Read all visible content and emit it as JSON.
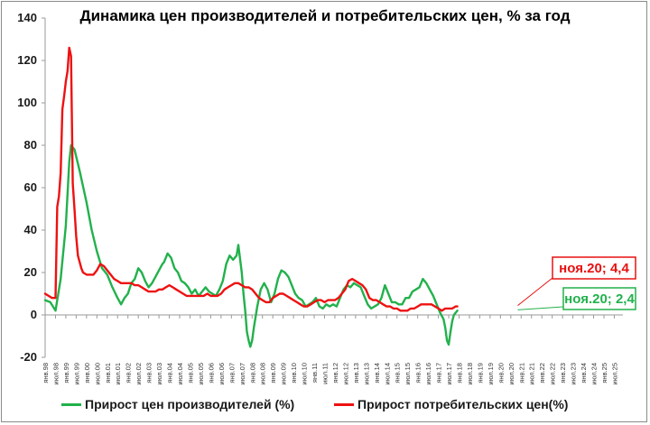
{
  "chart_data": {
    "type": "line",
    "title": "Динамика цен производителей и потребительских цен, % за год",
    "xlabel": "",
    "ylabel": "",
    "ylim": [
      -20,
      140
    ],
    "y_ticks": [
      140,
      120,
      100,
      80,
      60,
      40,
      20,
      0,
      -20
    ],
    "grid": false,
    "legend_position": "bottom",
    "x_tick_labels": [
      "янв.98",
      "июл.98",
      "янв.99",
      "июл.99",
      "янв.00",
      "июл.00",
      "янв.01",
      "июл.01",
      "янв.02",
      "июл.02",
      "янв.03",
      "июл.03",
      "янв.04",
      "июл.04",
      "янв.05",
      "июл.05",
      "янв.06",
      "июл.06",
      "янв.07",
      "июл.07",
      "янв.08",
      "июл.08",
      "янв.09",
      "июл.09",
      "янв.10",
      "июл.10",
      "янв.11",
      "июл.11",
      "янв.12",
      "июл.12",
      "янв.13",
      "июл.13",
      "янв.14",
      "июл.14",
      "янв.15",
      "июл.15",
      "янв.16",
      "июл.16",
      "янв.17",
      "июл.17",
      "янв.18",
      "июл.18",
      "янв.19",
      "июл.19",
      "янв.20",
      "июл.20",
      "янв.21",
      "июл.21",
      "янв.22",
      "июл.22",
      "янв.23",
      "июл.23",
      "янв.24",
      "июл.24",
      "янв.25",
      "июл.25"
    ],
    "series": [
      {
        "name": "Прирост цен производителей (%)",
        "color": "#22b14c",
        "points": [
          [
            0,
            7
          ],
          [
            3,
            6
          ],
          [
            6,
            2
          ],
          [
            9,
            17
          ],
          [
            12,
            42
          ],
          [
            14,
            72
          ],
          [
            15,
            80
          ],
          [
            17,
            78
          ],
          [
            20,
            68
          ],
          [
            24,
            53
          ],
          [
            27,
            40
          ],
          [
            30,
            30
          ],
          [
            33,
            22
          ],
          [
            36,
            19
          ],
          [
            39,
            13
          ],
          [
            42,
            8
          ],
          [
            44,
            5
          ],
          [
            46,
            8
          ],
          [
            48,
            10
          ],
          [
            50,
            15
          ],
          [
            52,
            17
          ],
          [
            54,
            22
          ],
          [
            56,
            20
          ],
          [
            58,
            16
          ],
          [
            60,
            13
          ],
          [
            62,
            15
          ],
          [
            64,
            18
          ],
          [
            66,
            21
          ],
          [
            68,
            24
          ],
          [
            69,
            25
          ],
          [
            71,
            29
          ],
          [
            73,
            27
          ],
          [
            75,
            22
          ],
          [
            77,
            20
          ],
          [
            79,
            16
          ],
          [
            81,
            15
          ],
          [
            83,
            13
          ],
          [
            85,
            10
          ],
          [
            87,
            12
          ],
          [
            89,
            9
          ],
          [
            91,
            11
          ],
          [
            93,
            13
          ],
          [
            95,
            11
          ],
          [
            97,
            10
          ],
          [
            99,
            9
          ],
          [
            101,
            12
          ],
          [
            103,
            16
          ],
          [
            105,
            24
          ],
          [
            107,
            28
          ],
          [
            109,
            26
          ],
          [
            111,
            28
          ],
          [
            112,
            33
          ],
          [
            114,
            20
          ],
          [
            115,
            10
          ],
          [
            116,
            2
          ],
          [
            117,
            -8
          ],
          [
            118,
            -12
          ],
          [
            119,
            -15
          ],
          [
            120,
            -12
          ],
          [
            121,
            -6
          ],
          [
            123,
            4
          ],
          [
            125,
            12
          ],
          [
            127,
            15
          ],
          [
            129,
            12
          ],
          [
            131,
            6
          ],
          [
            133,
            10
          ],
          [
            135,
            17
          ],
          [
            137,
            21
          ],
          [
            139,
            20
          ],
          [
            141,
            18
          ],
          [
            143,
            14
          ],
          [
            145,
            10
          ],
          [
            147,
            8
          ],
          [
            149,
            7
          ],
          [
            151,
            4
          ],
          [
            153,
            5
          ],
          [
            155,
            6
          ],
          [
            157,
            8
          ],
          [
            159,
            4
          ],
          [
            161,
            3
          ],
          [
            163,
            5
          ],
          [
            165,
            4
          ],
          [
            167,
            5
          ],
          [
            169,
            4
          ],
          [
            171,
            8
          ],
          [
            173,
            12
          ],
          [
            175,
            14
          ],
          [
            177,
            13
          ],
          [
            179,
            15
          ],
          [
            181,
            14
          ],
          [
            183,
            13
          ],
          [
            185,
            9
          ],
          [
            187,
            5
          ],
          [
            189,
            3
          ],
          [
            191,
            4
          ],
          [
            193,
            5
          ],
          [
            195,
            8
          ],
          [
            197,
            14
          ],
          [
            199,
            10
          ],
          [
            201,
            6
          ],
          [
            203,
            6
          ],
          [
            205,
            5
          ],
          [
            207,
            5
          ],
          [
            209,
            8
          ],
          [
            211,
            8
          ],
          [
            213,
            11
          ],
          [
            215,
            12
          ],
          [
            217,
            13
          ],
          [
            219,
            17
          ],
          [
            221,
            15
          ],
          [
            223,
            12
          ],
          [
            225,
            9
          ],
          [
            227,
            5
          ],
          [
            229,
            1
          ],
          [
            231,
            -2
          ],
          [
            232,
            -6
          ],
          [
            233,
            -12
          ],
          [
            234,
            -14
          ],
          [
            235,
            -8
          ],
          [
            236,
            -3
          ],
          [
            237,
            0
          ],
          [
            239,
            2
          ]
        ]
      },
      {
        "name": "Прирост потребительских цен(%)",
        "color": "#ee1111",
        "points": [
          [
            0,
            10
          ],
          [
            2,
            9
          ],
          [
            4,
            8
          ],
          [
            6,
            8
          ],
          [
            7,
            51
          ],
          [
            8,
            56
          ],
          [
            9,
            67
          ],
          [
            10,
            97
          ],
          [
            11,
            103
          ],
          [
            12,
            110
          ],
          [
            13,
            115
          ],
          [
            14,
            126
          ],
          [
            15,
            122
          ],
          [
            16,
            62
          ],
          [
            17,
            50
          ],
          [
            18,
            37
          ],
          [
            19,
            28
          ],
          [
            20,
            25
          ],
          [
            21,
            22
          ],
          [
            22,
            20
          ],
          [
            24,
            19
          ],
          [
            26,
            19
          ],
          [
            28,
            19
          ],
          [
            30,
            21
          ],
          [
            32,
            24
          ],
          [
            34,
            23
          ],
          [
            36,
            21
          ],
          [
            38,
            19
          ],
          [
            40,
            17
          ],
          [
            42,
            16
          ],
          [
            44,
            15
          ],
          [
            46,
            15
          ],
          [
            48,
            15
          ],
          [
            50,
            15
          ],
          [
            52,
            14
          ],
          [
            54,
            14
          ],
          [
            56,
            13
          ],
          [
            58,
            12
          ],
          [
            60,
            11
          ],
          [
            62,
            11
          ],
          [
            64,
            11
          ],
          [
            66,
            12
          ],
          [
            68,
            12
          ],
          [
            70,
            13
          ],
          [
            72,
            14
          ],
          [
            74,
            13
          ],
          [
            76,
            12
          ],
          [
            78,
            11
          ],
          [
            80,
            10
          ],
          [
            82,
            9
          ],
          [
            84,
            9
          ],
          [
            86,
            9
          ],
          [
            88,
            9
          ],
          [
            90,
            9
          ],
          [
            92,
            9
          ],
          [
            94,
            10
          ],
          [
            96,
            9
          ],
          [
            98,
            9
          ],
          [
            100,
            9
          ],
          [
            102,
            10
          ],
          [
            104,
            12
          ],
          [
            106,
            13
          ],
          [
            108,
            14
          ],
          [
            110,
            15
          ],
          [
            112,
            15
          ],
          [
            114,
            14
          ],
          [
            116,
            13
          ],
          [
            118,
            13
          ],
          [
            120,
            12
          ],
          [
            122,
            10
          ],
          [
            124,
            8
          ],
          [
            126,
            7
          ],
          [
            128,
            6
          ],
          [
            130,
            6
          ],
          [
            132,
            8
          ],
          [
            134,
            9
          ],
          [
            136,
            10
          ],
          [
            138,
            10
          ],
          [
            140,
            9
          ],
          [
            142,
            8
          ],
          [
            144,
            7
          ],
          [
            146,
            6
          ],
          [
            148,
            5
          ],
          [
            150,
            4
          ],
          [
            152,
            4
          ],
          [
            154,
            5
          ],
          [
            156,
            6
          ],
          [
            158,
            7
          ],
          [
            160,
            7
          ],
          [
            162,
            6
          ],
          [
            164,
            7
          ],
          [
            166,
            7
          ],
          [
            168,
            7
          ],
          [
            170,
            8
          ],
          [
            172,
            10
          ],
          [
            174,
            12
          ],
          [
            176,
            16
          ],
          [
            178,
            17
          ],
          [
            180,
            16
          ],
          [
            182,
            15
          ],
          [
            184,
            14
          ],
          [
            186,
            12
          ],
          [
            188,
            8
          ],
          [
            190,
            7
          ],
          [
            192,
            7
          ],
          [
            194,
            6
          ],
          [
            196,
            5
          ],
          [
            198,
            4
          ],
          [
            200,
            4
          ],
          [
            202,
            3
          ],
          [
            204,
            3
          ],
          [
            206,
            2
          ],
          [
            208,
            2
          ],
          [
            210,
            2
          ],
          [
            212,
            3
          ],
          [
            214,
            3
          ],
          [
            216,
            4
          ],
          [
            218,
            5
          ],
          [
            220,
            5
          ],
          [
            222,
            5
          ],
          [
            224,
            5
          ],
          [
            226,
            4
          ],
          [
            228,
            3
          ],
          [
            230,
            2
          ],
          [
            232,
            3
          ],
          [
            234,
            3
          ],
          [
            236,
            3
          ],
          [
            238,
            4
          ],
          [
            239,
            4
          ]
        ]
      }
    ],
    "annotations": [
      {
        "label": "ноя.20; 4,4",
        "color": "#e81010"
      },
      {
        "label": "ноя.20; 2,4",
        "color": "#22b14c"
      }
    ]
  },
  "legend": [
    {
      "label": "Прирост цен производителей (%)",
      "color": "#22b14c"
    },
    {
      "label": "Прирост потребительских цен(%)",
      "color": "#ee1111"
    }
  ]
}
